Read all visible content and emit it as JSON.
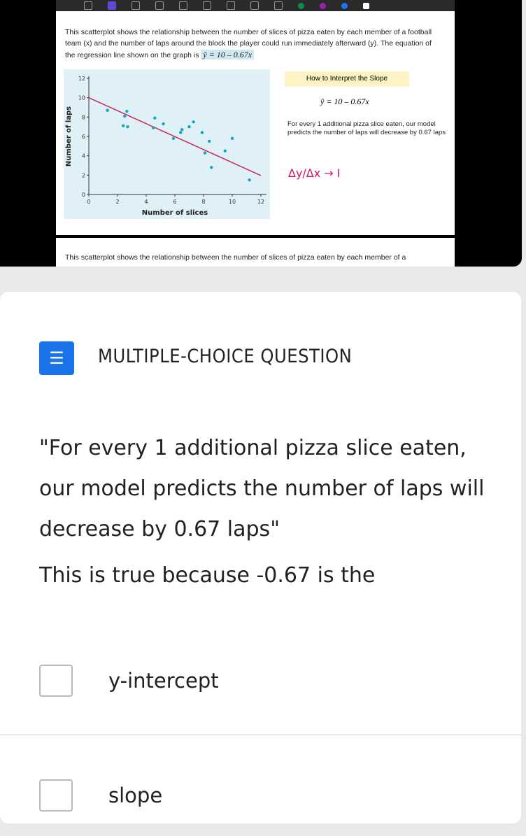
{
  "slide": {
    "intro": "This scatterplot shows the relationship between the number of slices of pizza eaten by each member of a football team (x) and the number of laps around the block the player could run immediately afterward (y). The equation of the regression line shown on the graph is",
    "equation": "ŷ = 10 – 0.67x",
    "slope_title": "How to Interpret the Slope",
    "slope_equation": "ŷ = 10 – 0.67x",
    "slope_text": "For every 1 additional pizza slice eaten, our model predicts the number of laps will decrease by 0.67 laps",
    "handwriting": "Δy/Δx → I",
    "intro_repeat": "This scatterplot shows the relationship between the number of slices of pizza eaten by each member of a"
  },
  "chart_data": {
    "type": "scatter",
    "xlabel": "Number of slices",
    "ylabel": "Number of laps",
    "xlim": [
      0,
      12
    ],
    "ylim": [
      0,
      12
    ],
    "xticks": [
      0,
      2,
      4,
      6,
      8,
      10,
      12
    ],
    "yticks": [
      0,
      2,
      4,
      6,
      8,
      10,
      12
    ],
    "points": [
      [
        1.3,
        8.7
      ],
      [
        2.4,
        7.1
      ],
      [
        2.5,
        8.1
      ],
      [
        2.65,
        8.6
      ],
      [
        2.7,
        7.0
      ],
      [
        4.5,
        6.9
      ],
      [
        4.6,
        7.9
      ],
      [
        5.2,
        7.3
      ],
      [
        5.9,
        5.8
      ],
      [
        6.4,
        6.4
      ],
      [
        6.5,
        6.7
      ],
      [
        7.0,
        7.0
      ],
      [
        7.3,
        7.5
      ],
      [
        7.9,
        6.4
      ],
      [
        8.1,
        4.3
      ],
      [
        8.4,
        5.5
      ],
      [
        8.55,
        2.8
      ],
      [
        9.5,
        4.5
      ],
      [
        10.0,
        5.8
      ],
      [
        11.2,
        1.5
      ]
    ],
    "regression": {
      "intercept": 10,
      "slope": -0.67
    },
    "point_color": "#1aa3c0",
    "line_color": "#c8285a",
    "background": "#dff0f6"
  },
  "question": {
    "type_label": "MULTIPLE-CHOICE QUESTION",
    "text": "\"For every 1 additional pizza slice eaten, our model predicts the number of laps will decrease by 0.67 laps\"",
    "prompt": "This is true because -0.67 is the",
    "options": [
      {
        "label": "y-intercept",
        "checked": false
      },
      {
        "label": "slope",
        "checked": false
      }
    ]
  }
}
